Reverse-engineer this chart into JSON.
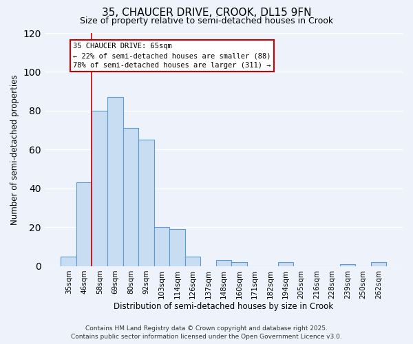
{
  "title": "35, CHAUCER DRIVE, CROOK, DL15 9FN",
  "subtitle": "Size of property relative to semi-detached houses in Crook",
  "xlabel": "Distribution of semi-detached houses by size in Crook",
  "ylabel": "Number of semi-detached properties",
  "bins": [
    "35sqm",
    "46sqm",
    "58sqm",
    "69sqm",
    "80sqm",
    "92sqm",
    "103sqm",
    "114sqm",
    "126sqm",
    "137sqm",
    "148sqm",
    "160sqm",
    "171sqm",
    "182sqm",
    "194sqm",
    "205sqm",
    "216sqm",
    "228sqm",
    "239sqm",
    "250sqm",
    "262sqm"
  ],
  "values": [
    5,
    43,
    80,
    87,
    71,
    65,
    20,
    19,
    5,
    0,
    3,
    2,
    0,
    0,
    2,
    0,
    0,
    0,
    1,
    0,
    2
  ],
  "bar_color": "#c8ddf2",
  "bar_edge_color": "#5b9bd5",
  "vline_color": "#cc0000",
  "vline_x_index": 2,
  "ylim": [
    0,
    120
  ],
  "annotation_title": "35 CHAUCER DRIVE: 65sqm",
  "annotation_line1": "← 22% of semi-detached houses are smaller (88)",
  "annotation_line2": "78% of semi-detached houses are larger (311) →",
  "annotation_box_color": "#ffffff",
  "annotation_box_edge": "#cc0000",
  "footnote1": "Contains HM Land Registry data © Crown copyright and database right 2025.",
  "footnote2": "Contains public sector information licensed under the Open Government Licence v3.0.",
  "bg_color": "#eef2fb",
  "grid_color": "#ffffff",
  "title_fontsize": 11,
  "subtitle_fontsize": 9,
  "axis_label_fontsize": 8.5,
  "tick_fontsize": 7.5,
  "annotation_fontsize": 7.5,
  "footnote_fontsize": 6.5
}
